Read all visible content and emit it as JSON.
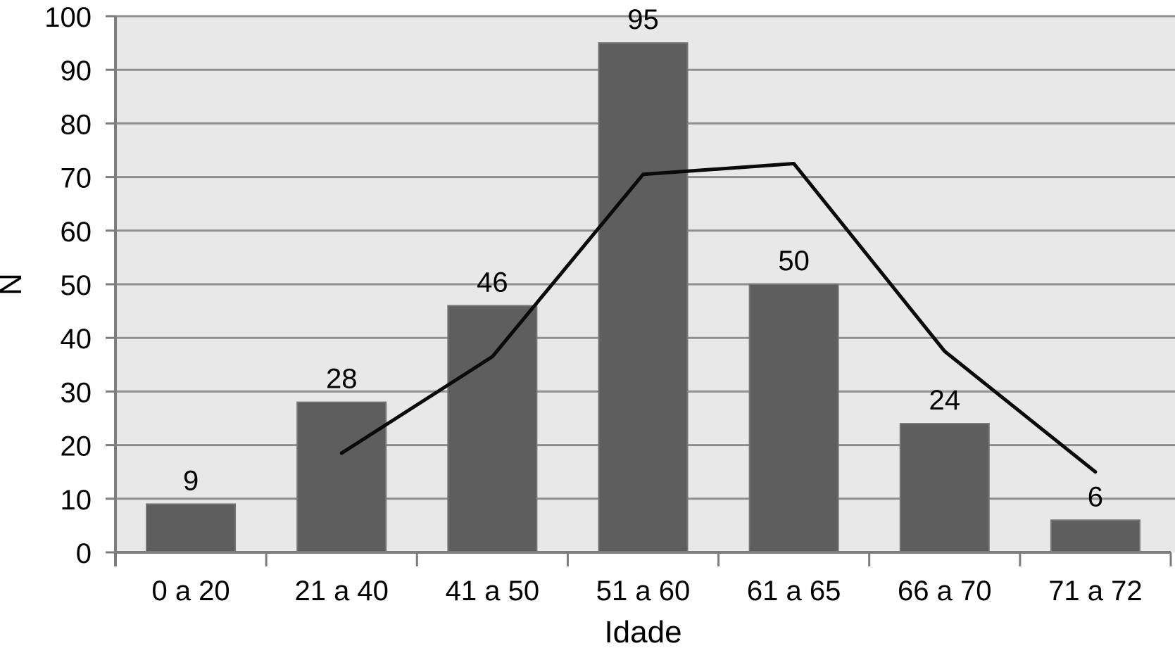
{
  "chart_data": {
    "type": "bar",
    "title": "",
    "xlabel": "Idade",
    "ylabel": "N",
    "categories": [
      "0 a 20",
      "21 a 40",
      "41 a 50",
      "51 a 60",
      "61 a 65",
      "66 a 70",
      "71 a 72"
    ],
    "series": [
      {
        "name": "bar-series",
        "type": "bar",
        "values": [
          9,
          28,
          46,
          95,
          50,
          24,
          6
        ],
        "data_labels": [
          "9",
          "28",
          "46",
          "95",
          "50",
          "24",
          "6"
        ],
        "color": "#5e5e5e",
        "border_color": "#757575"
      },
      {
        "name": "line-series",
        "type": "line",
        "start_category_index": 1,
        "values": [
          18.5,
          36.5,
          70.5,
          72.5,
          37.5,
          15
        ],
        "color": "#0a0a0a"
      }
    ],
    "ylim": [
      0,
      100
    ],
    "ytick_step": 10,
    "ytick_labels": [
      "0",
      "10",
      "20",
      "30",
      "40",
      "50",
      "60",
      "70",
      "80",
      "90",
      "100"
    ],
    "grid": true,
    "legend": "none",
    "plot_background": "#e8e8e8",
    "gridline_color": "#8f8f8f",
    "axis_color": "#7d7d7d"
  }
}
